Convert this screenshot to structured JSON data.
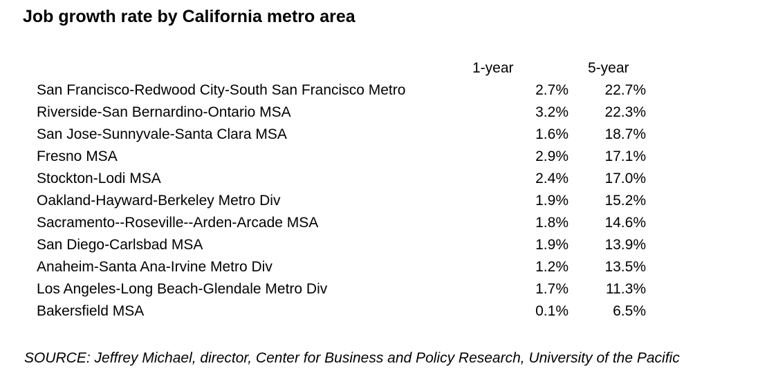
{
  "chart_data": {
    "type": "table",
    "title": "Job growth rate by California metro area",
    "columns": [
      "1-year",
      "5-year"
    ],
    "rows": [
      {
        "area": "San Francisco-Redwood City-South San Francisco Metro",
        "one_year": "2.7%",
        "five_year": "22.7%"
      },
      {
        "area": "Riverside-San Bernardino-Ontario MSA",
        "one_year": "3.2%",
        "five_year": "22.3%"
      },
      {
        "area": "San Jose-Sunnyvale-Santa Clara MSA",
        "one_year": "1.6%",
        "five_year": "18.7%"
      },
      {
        "area": "Fresno MSA",
        "one_year": "2.9%",
        "five_year": "17.1%"
      },
      {
        "area": "Stockton-Lodi MSA",
        "one_year": "2.4%",
        "five_year": "17.0%"
      },
      {
        "area": "Oakland-Hayward-Berkeley Metro Div",
        "one_year": "1.9%",
        "five_year": "15.2%"
      },
      {
        "area": "Sacramento--Roseville--Arden-Arcade MSA",
        "one_year": "1.8%",
        "five_year": "14.6%"
      },
      {
        "area": "San Diego-Carlsbad MSA",
        "one_year": "1.9%",
        "five_year": "13.9%"
      },
      {
        "area": "Anaheim-Santa Ana-Irvine Metro Div",
        "one_year": "1.2%",
        "five_year": "13.5%"
      },
      {
        "area": "Los Angeles-Long Beach-Glendale Metro Div",
        "one_year": "1.7%",
        "five_year": "11.3%"
      },
      {
        "area": "Bakersfield MSA",
        "one_year": "0.1%",
        "five_year": "6.5%"
      }
    ],
    "source": "SOURCE: Jeffrey Michael, director, Center for Business and Policy Research, University of the Pacific"
  }
}
